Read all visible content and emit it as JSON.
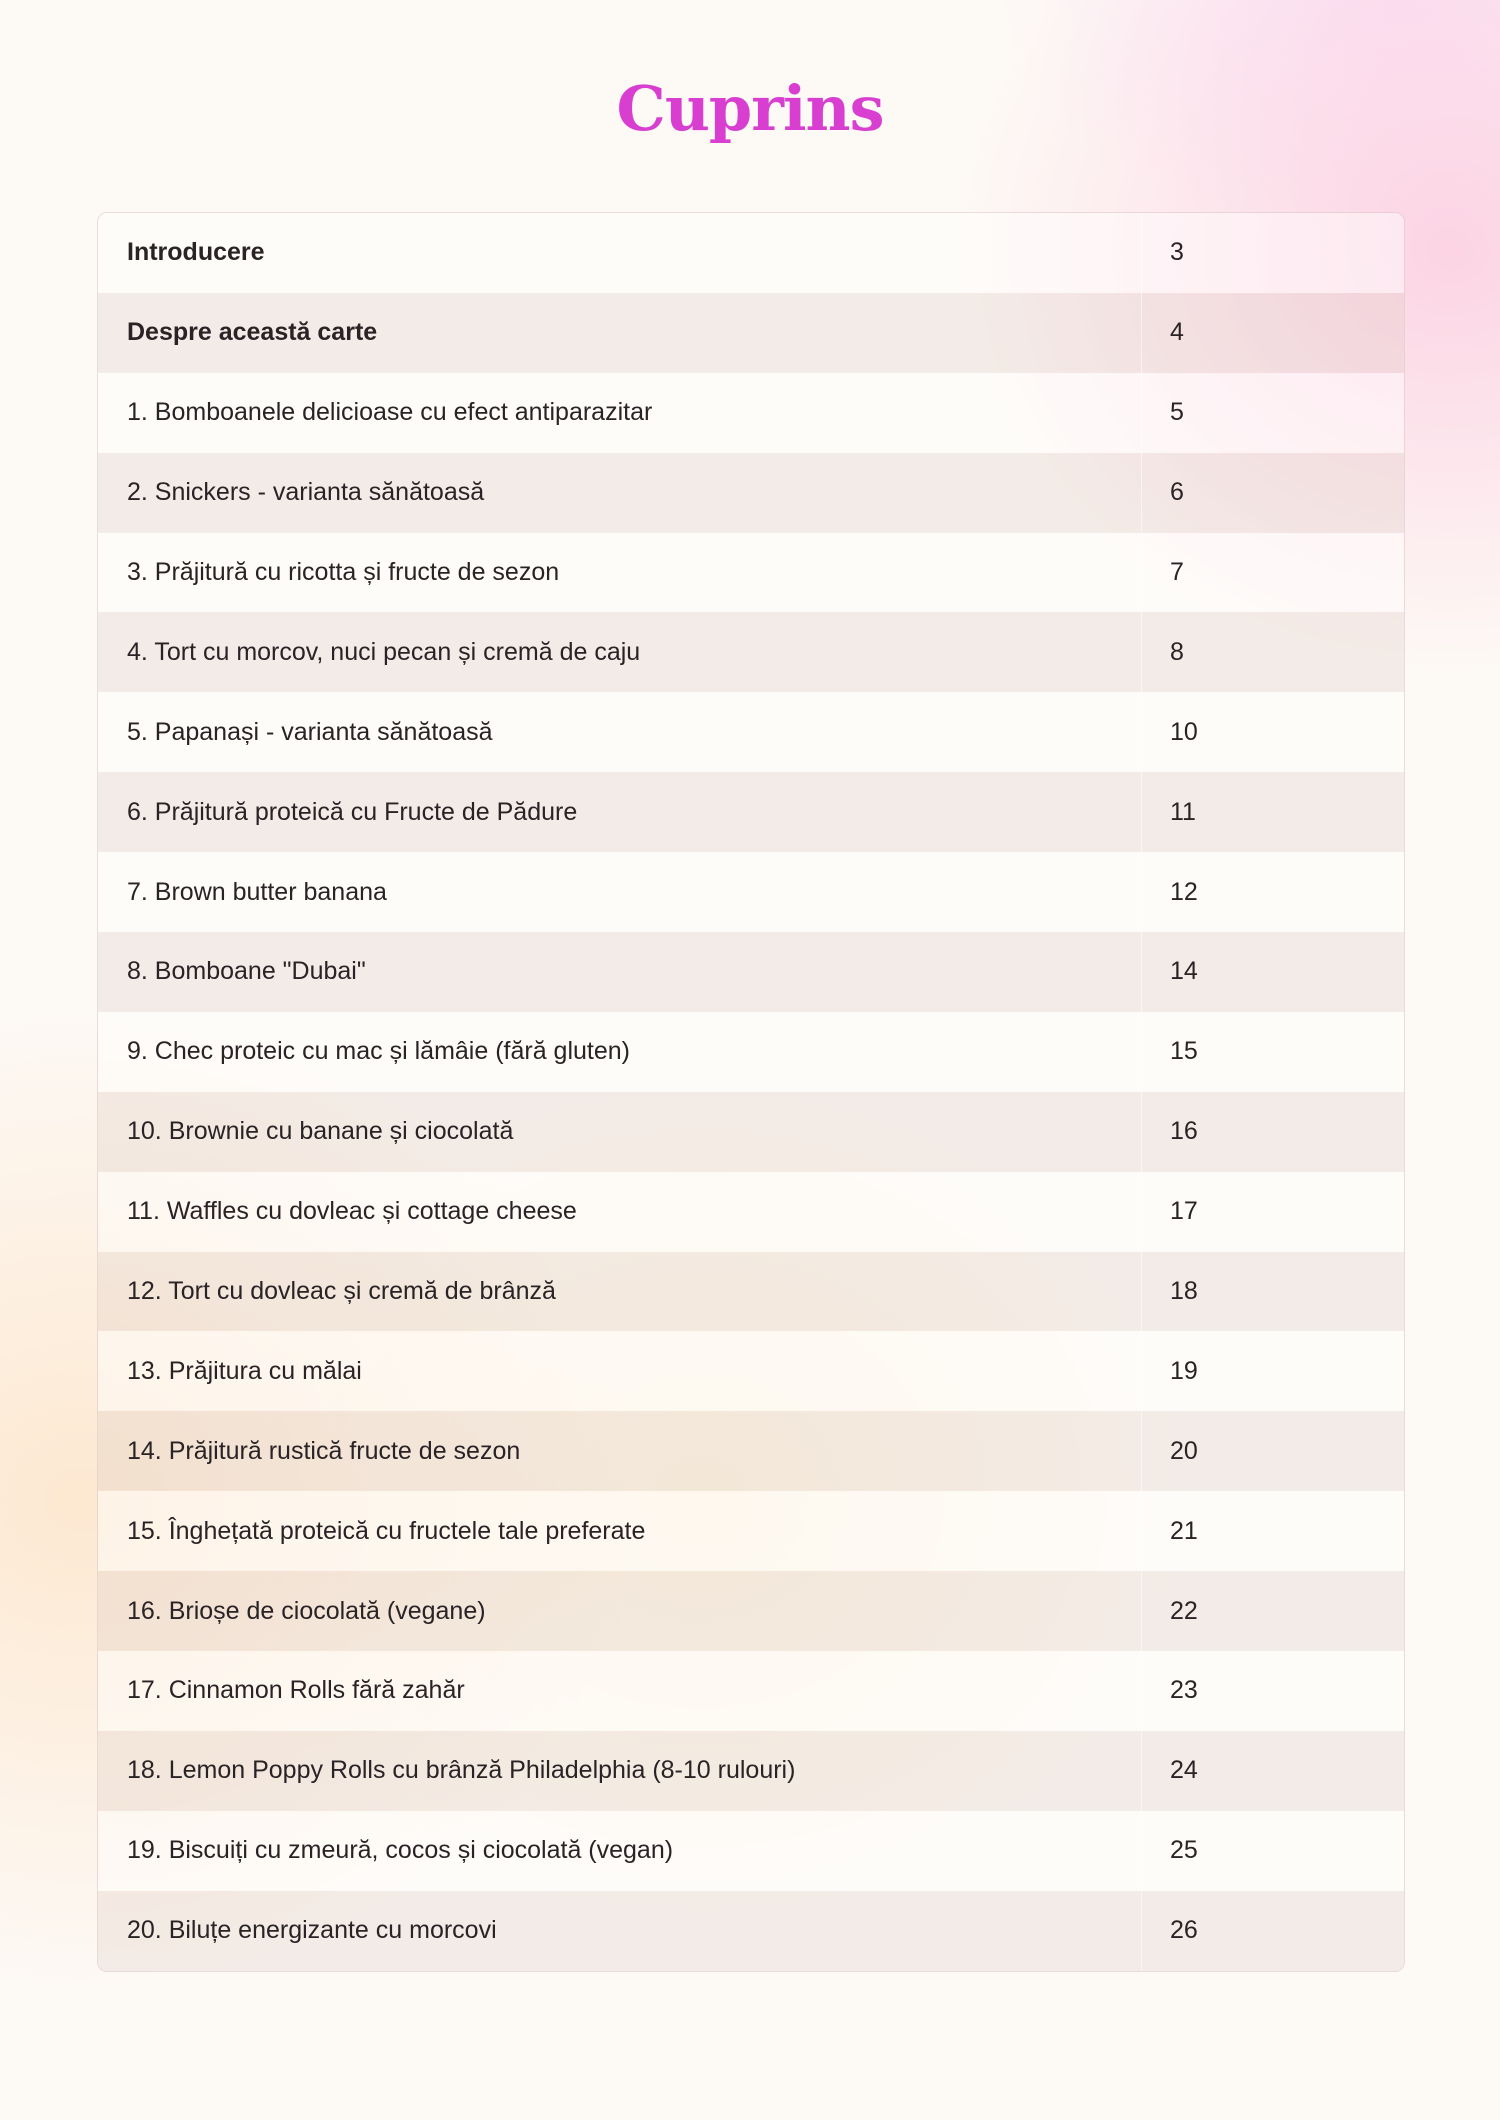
{
  "title": "Cuprins",
  "accent_color": "#d83fd0",
  "entries": [
    {
      "label": "Introducere",
      "page": "3",
      "bold": true
    },
    {
      "label": "Despre această carte",
      "page": "4",
      "bold": true
    },
    {
      "label": "1. Bomboanele delicioase cu efect antiparazitar",
      "page": "5"
    },
    {
      "label": "2. Snickers - varianta sănătoasă",
      "page": "6"
    },
    {
      "label": "3. Prăjitură cu ricotta și fructe de sezon",
      "page": "7"
    },
    {
      "label": "4. Tort cu morcov, nuci pecan și cremă de caju",
      "page": "8"
    },
    {
      "label": "5. Papanași - varianta sănătoasă",
      "page": "10"
    },
    {
      "label": "6. Prăjitură proteică cu Fructe de Pădure",
      "page": "11"
    },
    {
      "label": "7. Brown butter banana",
      "page": "12"
    },
    {
      "label": "8. Bomboane \"Dubai\"",
      "page": "14"
    },
    {
      "label": "9. Chec proteic cu mac și lămâie (fără gluten)",
      "page": "15"
    },
    {
      "label": "10. Brownie cu banane și ciocolată",
      "page": "16"
    },
    {
      "label": "11. Waffles cu dovleac și cottage cheese",
      "page": "17"
    },
    {
      "label": "12. Tort cu dovleac și cremă de brânză",
      "page": "18"
    },
    {
      "label": "13. Prăjitura cu mălai",
      "page": "19"
    },
    {
      "label": "14. Prăjitură rustică fructe de sezon",
      "page": "20"
    },
    {
      "label": "15. Înghețată proteică cu fructele tale preferate",
      "page": "21"
    },
    {
      "label": "16. Brioșe de ciocolată (vegane)",
      "page": "22"
    },
    {
      "label": "17. Cinnamon Rolls fără zahăr",
      "page": "23"
    },
    {
      "label": "18. Lemon Poppy Rolls cu brânză Philadelphia (8-10 rulouri)",
      "page": "24"
    },
    {
      "label": "19. Biscuiți cu zmeură, cocos și ciocolată (vegan)",
      "page": "25"
    },
    {
      "label": "20. Biluțe energizante cu morcovi",
      "page": "26"
    }
  ]
}
